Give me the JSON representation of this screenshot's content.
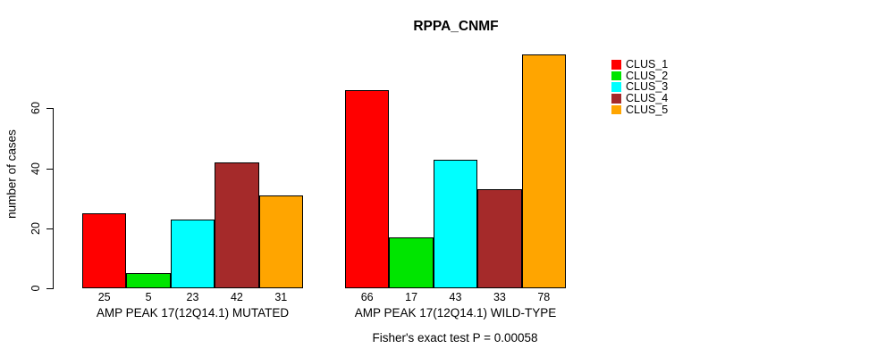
{
  "title": "RPPA_CNMF",
  "chart_data": {
    "type": "bar",
    "title": "RPPA_CNMF",
    "ylabel": "number of cases",
    "ylim": [
      0,
      80
    ],
    "yticks": [
      0,
      20,
      40,
      60
    ],
    "grid": false,
    "legend_position": "right",
    "series": [
      {
        "name": "CLUS_1",
        "color": "#ff0000"
      },
      {
        "name": "CLUS_2",
        "color": "#00e500"
      },
      {
        "name": "CLUS_3",
        "color": "#00ffff"
      },
      {
        "name": "CLUS_4",
        "color": "#a52a2a"
      },
      {
        "name": "CLUS_5",
        "color": "#ffa500"
      }
    ],
    "groups": [
      {
        "label": "AMP PEAK 17(12Q14.1) MUTATED",
        "values": [
          25,
          5,
          23,
          42,
          31
        ]
      },
      {
        "label": "AMP PEAK 17(12Q14.1) WILD-TYPE",
        "values": [
          66,
          17,
          43,
          33,
          78
        ]
      }
    ],
    "bar_value_labels": true,
    "annotation": "Fisher's exact test P = 0.00058"
  }
}
